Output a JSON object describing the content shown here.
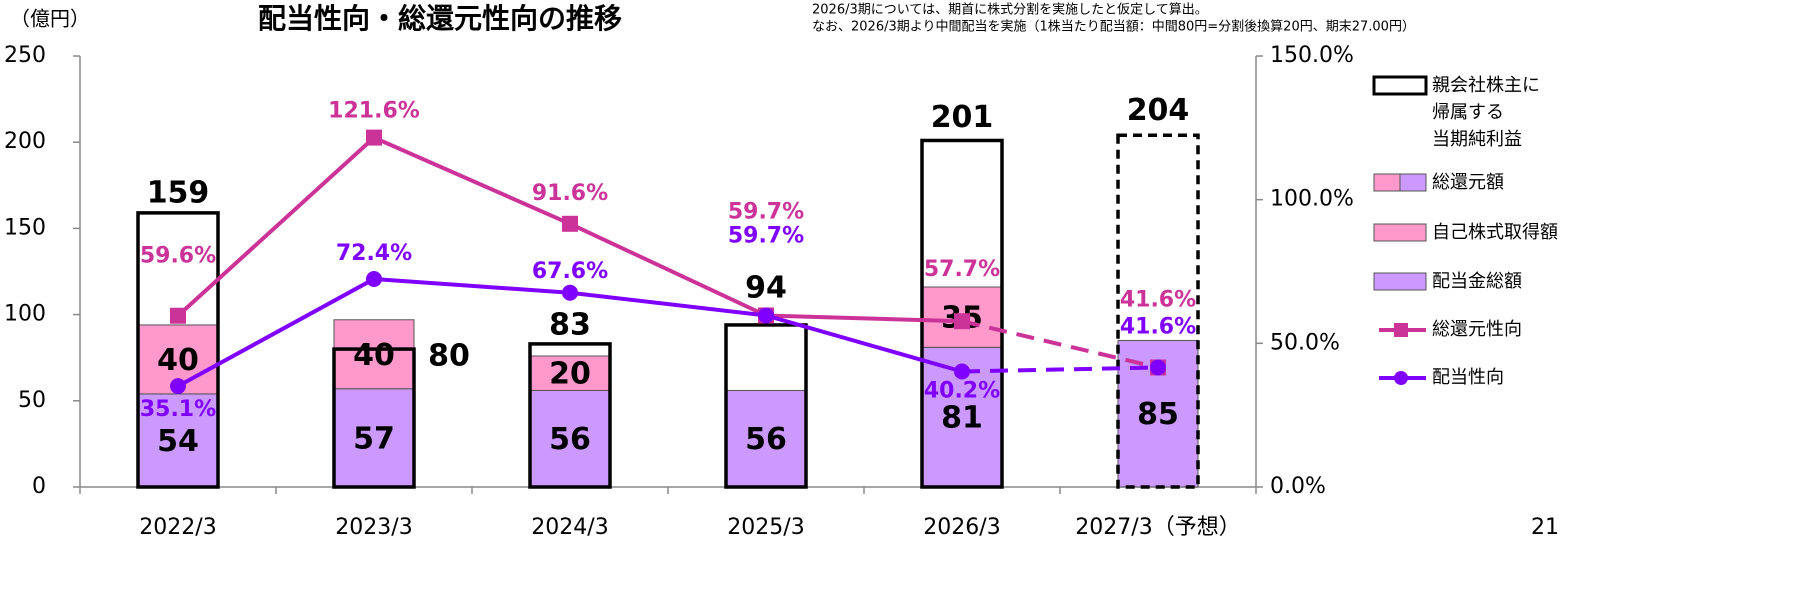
{
  "chart_data": {
    "type": "bar",
    "title": "配当性向・総還元性向の推移",
    "y_label": "（億円）",
    "notes": [
      "2026/3期については、期首に株式分割を実施したと仮定して算出。",
      "なお、2026/3期より中間配当を実施（1株当たり配当額：中間80円=分割後換算20円、期末27.00円）"
    ],
    "page_number": "21",
    "categories": [
      "2022/3",
      "2023/3",
      "2024/3",
      "2025/3",
      "2026/3",
      "2027/3（予想）"
    ],
    "ylim": [
      0,
      250
    ],
    "yticks": [
      0,
      50,
      100,
      150,
      200,
      250
    ],
    "y2lim": [
      0,
      150
    ],
    "y2ticks": [
      {
        "value": 0,
        "label": "0.0%"
      },
      {
        "value": 50,
        "label": "50.0%"
      },
      {
        "value": 100,
        "label": "100.0%"
      },
      {
        "value": 150,
        "label": "150.0%"
      }
    ],
    "legend_total": "総還元額",
    "series": [
      {
        "name": "親会社株主に\n帰属する\n当期純利益",
        "kind": "outline",
        "color": "#000000",
        "values": [
          159,
          80,
          83,
          94,
          201,
          204
        ]
      },
      {
        "name": "自己株式取得額",
        "kind": "stack",
        "color": "#ff99cc",
        "values": [
          40,
          40,
          20,
          null,
          35,
          null
        ]
      },
      {
        "name": "配当金総額",
        "kind": "stack",
        "color": "#cc99ff",
        "values": [
          54,
          57,
          56,
          56,
          81,
          85
        ]
      },
      {
        "name": "総還元性向",
        "kind": "line",
        "axis": "y2",
        "marker": "square",
        "color": "#cc3399",
        "values": [
          59.6,
          121.6,
          91.6,
          59.7,
          57.7,
          41.6
        ],
        "value_labels": [
          "59.6%",
          "121.6%",
          "91.6%",
          "59.7%",
          "57.7%",
          "41.6%"
        ]
      },
      {
        "name": "配当性向",
        "kind": "line",
        "axis": "y2",
        "marker": "circle",
        "color": "#7f00ff",
        "values": [
          35.1,
          72.4,
          67.6,
          59.7,
          40.2,
          41.6
        ],
        "value_labels": [
          "35.1%",
          "72.4%",
          "67.6%",
          "59.7%",
          "40.2%",
          "41.6%"
        ]
      }
    ]
  }
}
